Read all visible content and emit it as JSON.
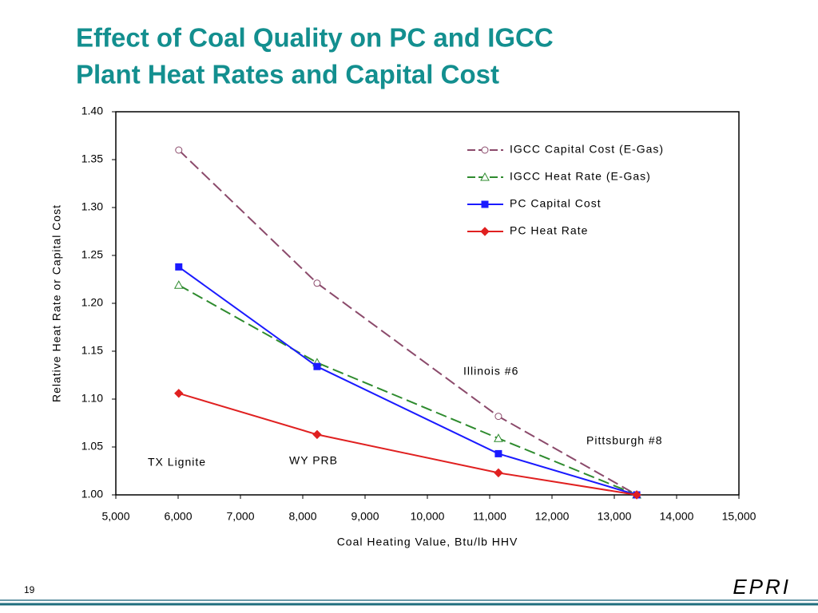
{
  "chart_data": {
    "type": "line",
    "title_lines": [
      "Effect of Coal Quality on PC and IGCC",
      "Plant Heat Rates and Capital Cost"
    ],
    "x_label": "Coal Heating Value, Btu/lb HHV",
    "y_label": "Relative Heat Rate or Capital Cost",
    "x": [
      6010,
      8230,
      11140,
      13360
    ],
    "series": [
      {
        "name": "IGCC Capital Cost (E-Gas)",
        "color": "#8b4a6b",
        "marker": "circle",
        "dashed": true,
        "values": [
          1.36,
          1.221,
          1.082,
          1.0
        ]
      },
      {
        "name": "IGCC Heat Rate (E-Gas)",
        "color": "#2e8b2e",
        "marker": "triangle",
        "dashed": true,
        "values": [
          1.219,
          1.138,
          1.059,
          1.0
        ]
      },
      {
        "name": "PC Capital Cost",
        "color": "#1a1aff",
        "marker": "square",
        "dashed": false,
        "values": [
          1.238,
          1.134,
          1.043,
          1.0
        ]
      },
      {
        "name": "PC Heat Rate",
        "color": "#e02020",
        "marker": "diamond",
        "dashed": false,
        "values": [
          1.106,
          1.063,
          1.023,
          1.0
        ]
      }
    ],
    "annotations": [
      "TX Lignite",
      "WY PRB",
      "Illinois #6",
      "Pittsburgh #8"
    ],
    "xlim": [
      5000,
      15000
    ],
    "xticks": [
      {
        "value": 5000,
        "label": "5,000"
      },
      {
        "value": 6000,
        "label": "6,000"
      },
      {
        "value": 7000,
        "label": "7,000"
      },
      {
        "value": 8000,
        "label": "8,000"
      },
      {
        "value": 9000,
        "label": "9,000"
      },
      {
        "value": 10000,
        "label": "10,000"
      },
      {
        "value": 11000,
        "label": "11,000"
      },
      {
        "value": 12000,
        "label": "12,000"
      },
      {
        "value": 13000,
        "label": "13,000"
      },
      {
        "value": 14000,
        "label": "14,000"
      },
      {
        "value": 15000,
        "label": "15,000"
      }
    ],
    "ylim": [
      1.0,
      1.4
    ],
    "yticks": [
      {
        "value": 1.0,
        "label": "1.00"
      },
      {
        "value": 1.05,
        "label": "1.05"
      },
      {
        "value": 1.1,
        "label": "1.10"
      },
      {
        "value": 1.15,
        "label": "1.15"
      },
      {
        "value": 1.2,
        "label": "1.20"
      },
      {
        "value": 1.25,
        "label": "1.25"
      },
      {
        "value": 1.3,
        "label": "1.30"
      },
      {
        "value": 1.35,
        "label": "1.35"
      },
      {
        "value": 1.4,
        "label": "1.40"
      }
    ],
    "legend": "upper right",
    "grid": false
  },
  "footer": {
    "page_number": "19",
    "logo": "EPRI"
  }
}
